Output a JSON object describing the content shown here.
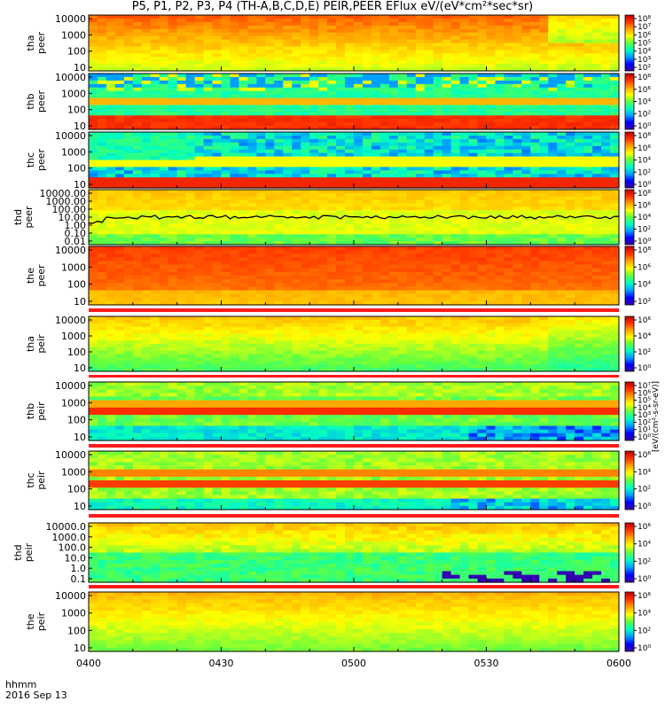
{
  "title": "P5, P1, P2, P3, P4 (TH-A,B,C,D,E) PEIR,PEER EFlux eV/(eV*cm²*sec*sr)",
  "time_axis": {
    "ticks": [
      "0400",
      "0430",
      "0500",
      "0530",
      "0600"
    ],
    "label_line1": "hhmm",
    "label_line2": "2016 Sep 13"
  },
  "colorbar_label": "[eV/(cm²-s-sr-eV)]",
  "colors": {
    "palette": [
      "#3b00a0",
      "#0000ff",
      "#00a0ff",
      "#00ffc0",
      "#60ff40",
      "#ffff00",
      "#ffa000",
      "#ff3000",
      "#c00000"
    ]
  },
  "chart_data": [
    {
      "type": "heatmap",
      "probe": "tha",
      "instrument": "peer",
      "ylabel": [
        "tha",
        "peer"
      ],
      "y_scale": "log",
      "ylim": [
        10,
        20000
      ],
      "yticks": [
        "10000",
        "1000",
        "100",
        "10"
      ],
      "colorbar_ticks": [
        "10⁸",
        "10⁷",
        "10⁶",
        "10⁵",
        "10⁴",
        "10³",
        "10²"
      ],
      "mode": "red_top"
    },
    {
      "type": "heatmap",
      "probe": "thb",
      "instrument": "peer",
      "ylabel": [
        "thb",
        "peer"
      ],
      "y_scale": "log",
      "ylim": [
        10,
        20000
      ],
      "yticks": [
        "10000",
        "1000",
        "100",
        "10"
      ],
      "colorbar_ticks": [
        "10⁸",
        "10⁶",
        "10⁴",
        "10²",
        "10⁰"
      ],
      "mode": "green_band"
    },
    {
      "type": "heatmap",
      "probe": "thc",
      "instrument": "peer",
      "ylabel": [
        "thc",
        "peer"
      ],
      "y_scale": "log",
      "ylim": [
        10,
        20000
      ],
      "yticks": [
        "10000",
        "1000",
        "100",
        "10"
      ],
      "colorbar_ticks": [
        "10⁸",
        "10⁶",
        "10⁴",
        "10²",
        "10⁰"
      ],
      "mode": "blue_noise"
    },
    {
      "type": "heatmap",
      "probe": "thd",
      "instrument": "peer",
      "ylabel": [
        "thd",
        "peer"
      ],
      "y_scale": "log",
      "ylim": [
        0.01,
        20000
      ],
      "yticks": [
        "10000.00",
        "1000.00",
        "100.00",
        "10.00",
        "1.00",
        "0.10",
        "0.01"
      ],
      "colorbar_ticks": [
        "10⁸",
        "10⁶",
        "10⁴",
        "10²",
        "10⁰"
      ],
      "mode": "line_panel"
    },
    {
      "type": "heatmap",
      "probe": "the",
      "instrument": "peer",
      "ylabel": [
        "the",
        "peer"
      ],
      "y_scale": "log",
      "ylim": [
        5,
        20000
      ],
      "yticks": [
        "10000",
        "1000",
        "100",
        "10"
      ],
      "colorbar_ticks": [
        "10⁸",
        "10⁶",
        "10⁴",
        "10²"
      ],
      "mode": "red_full"
    },
    {
      "type": "heatmap",
      "probe": "tha",
      "instrument": "peir",
      "ylabel": [
        "tha",
        "peir"
      ],
      "y_scale": "log",
      "ylim": [
        5,
        20000
      ],
      "yticks": [
        "10000",
        "1000",
        "100",
        "10"
      ],
      "colorbar_ticks": [
        "10⁶",
        "10⁴",
        "10²",
        "10⁰"
      ],
      "mode": "yellow_fade"
    },
    {
      "type": "heatmap",
      "probe": "thb",
      "instrument": "peir",
      "ylabel": [
        "thb",
        "peir"
      ],
      "y_scale": "log",
      "ylim": [
        5,
        20000
      ],
      "yticks": [
        "10000",
        "1000",
        "100",
        "10"
      ],
      "colorbar_ticks": [
        "10⁷",
        "10⁶",
        "10⁵",
        "10⁴",
        "10³",
        "10²",
        "10¹",
        "10⁰"
      ],
      "mode": "band_cut"
    },
    {
      "type": "heatmap",
      "probe": "thc",
      "instrument": "peir",
      "ylabel": [
        "thc",
        "peir"
      ],
      "y_scale": "log",
      "ylim": [
        5,
        20000
      ],
      "yticks": [
        "10000",
        "1000",
        "100",
        "10"
      ],
      "colorbar_ticks": [
        "10⁶",
        "10⁴",
        "10²",
        "10⁰"
      ],
      "mode": "band_cut2"
    },
    {
      "type": "heatmap",
      "probe": "thd",
      "instrument": "peir",
      "ylabel": [
        "thd",
        "peir"
      ],
      "y_scale": "log",
      "ylim": [
        0.05,
        20000
      ],
      "yticks": [
        "10000.0",
        "1000.0",
        "100.0",
        "10.0",
        "1.0",
        "0.1"
      ],
      "colorbar_ticks": [
        "10⁶",
        "10⁴",
        "10²",
        "10⁰"
      ],
      "mode": "striped"
    },
    {
      "type": "heatmap",
      "probe": "the",
      "instrument": "peir",
      "ylabel": [
        "the",
        "peir"
      ],
      "y_scale": "log",
      "ylim": [
        5,
        20000
      ],
      "yticks": [
        "10000",
        "1000",
        "100",
        "10"
      ],
      "colorbar_ticks": [
        "10⁶",
        "10⁴",
        "10²",
        "10⁰"
      ],
      "mode": "yellow_fade2"
    }
  ]
}
